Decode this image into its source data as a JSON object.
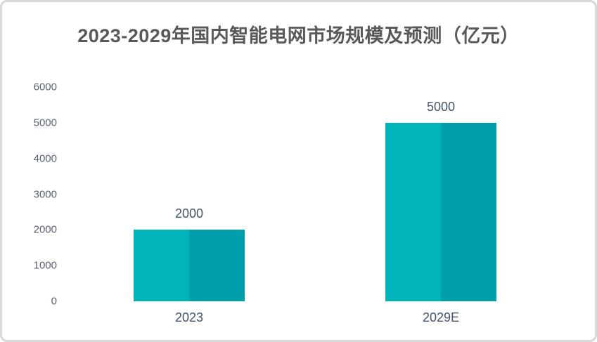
{
  "title": "2023-2029年国内智能电网市场规模及预测（亿元）",
  "colors": {
    "bar_left_half": "#00b4bc",
    "bar_right_half": "#019fab",
    "title_text": "#595959",
    "axis_text": "#5a6270",
    "label_text": "#44546a",
    "frame_border": "#d9d9d9",
    "background": "#ffffff"
  },
  "chart_data": {
    "type": "bar",
    "title": "2023-2029年国内智能电网市场规模及预测（亿元）",
    "categories": [
      "2023",
      "2029E"
    ],
    "values": [
      2000,
      5000
    ],
    "data_labels": [
      "2000",
      "5000"
    ],
    "xlabel": "",
    "ylabel": "",
    "ylim": [
      0,
      6000
    ],
    "yticks": [
      0,
      1000,
      2000,
      3000,
      4000,
      5000,
      6000
    ],
    "grid": false,
    "legend": false,
    "bar_style": "two-tone vertical split, lighter teal left half, darker teal right half"
  }
}
